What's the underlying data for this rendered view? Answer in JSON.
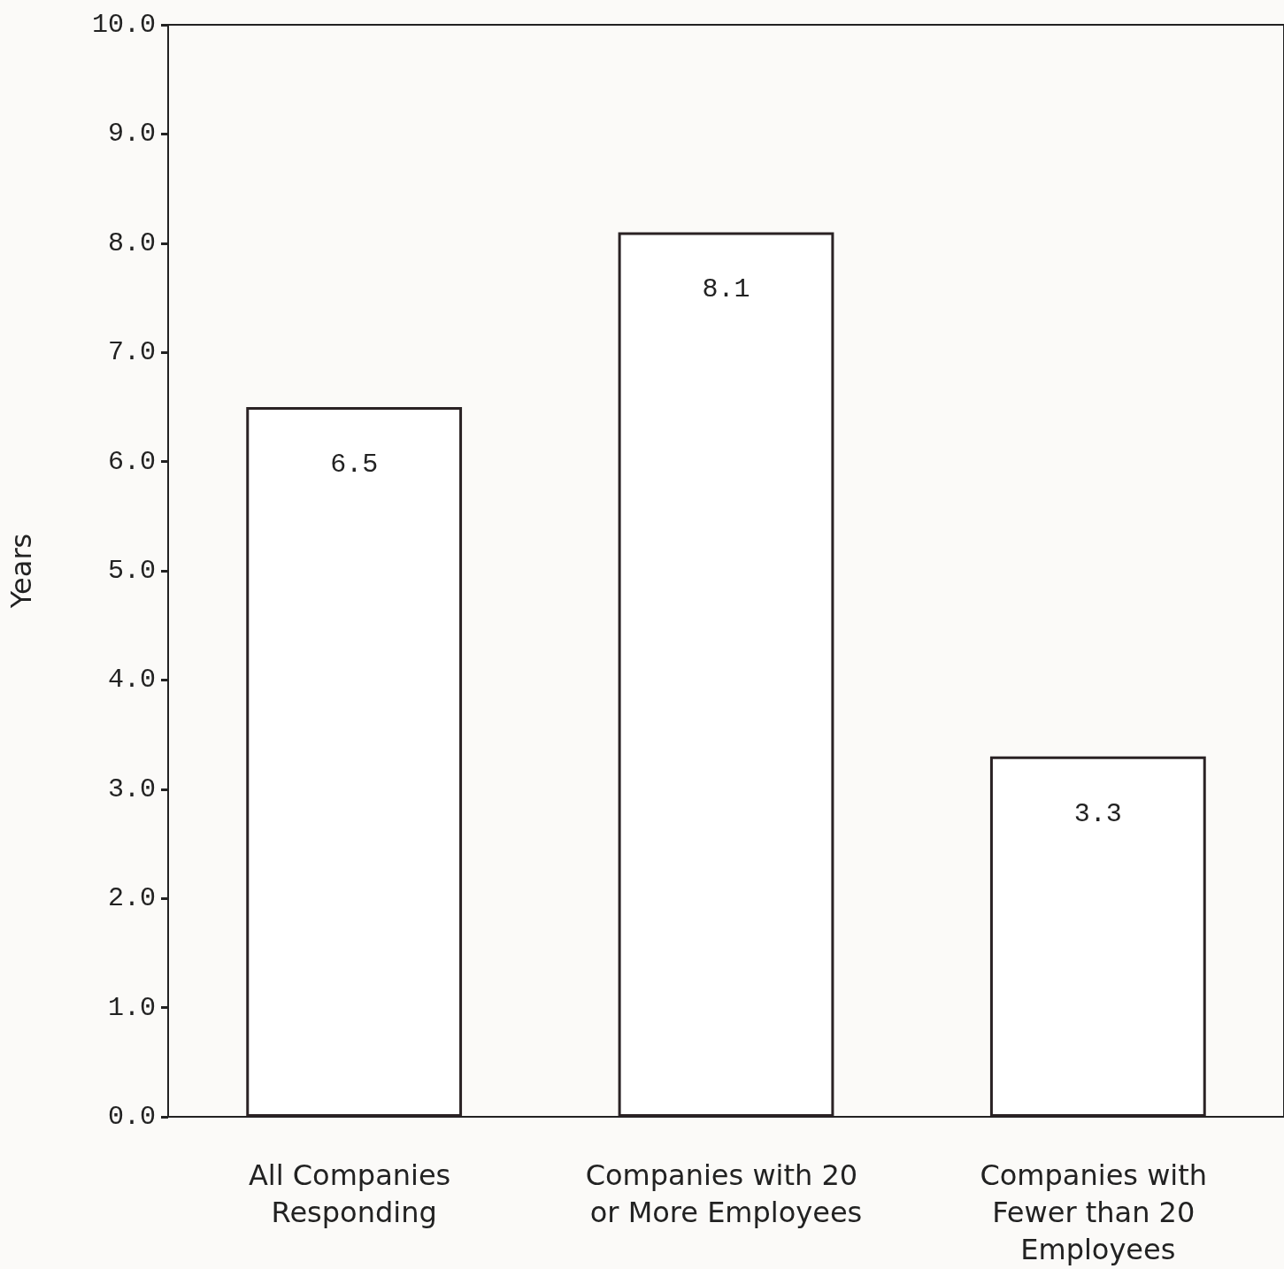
{
  "chart_data": {
    "type": "bar",
    "ylabel": "Years",
    "categories": [
      "All Companies Responding",
      "Companies with 20 or More Employees",
      "Companies with Fewer than 20 Employees"
    ],
    "values": [
      6.5,
      8.1,
      3.3
    ],
    "color": "#ffffff",
    "data_labels": true,
    "ylim": [
      0,
      10
    ],
    "yticks": [
      {
        "value": 0,
        "label": "0.0"
      },
      {
        "value": 1,
        "label": "1.0"
      },
      {
        "value": 2,
        "label": "2.0"
      },
      {
        "value": 3,
        "label": "3.0"
      },
      {
        "value": 4,
        "label": "4.0"
      },
      {
        "value": 5,
        "label": "5.0"
      },
      {
        "value": 6,
        "label": "6.0"
      },
      {
        "value": 7,
        "label": "7.0"
      },
      {
        "value": 8,
        "label": "8.0"
      },
      {
        "value": 9,
        "label": "9.0"
      },
      {
        "value": 10,
        "label": "10.0"
      }
    ],
    "grid": false
  }
}
